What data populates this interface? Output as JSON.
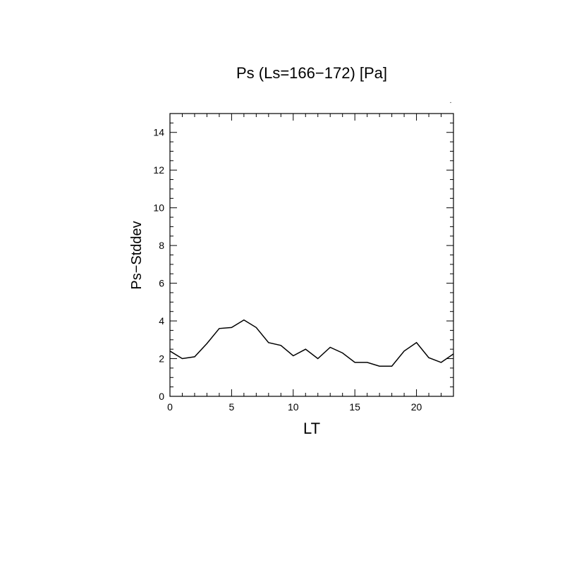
{
  "chart_data": {
    "type": "line",
    "title": "Ps (Ls=166−172) [Pa]",
    "xlabel": "LT",
    "ylabel": "Ps−Stddev",
    "xlim": [
      0,
      23
    ],
    "ylim": [
      0,
      15
    ],
    "x_ticks": [
      0,
      5,
      10,
      15,
      20
    ],
    "y_ticks": [
      0,
      2,
      4,
      6,
      8,
      10,
      12,
      14
    ],
    "grid": false,
    "series": [
      {
        "x": [
          0,
          1,
          2,
          3,
          4,
          5,
          6,
          7,
          8,
          9,
          10,
          11,
          12,
          13,
          14,
          15,
          16,
          17,
          18,
          19,
          20,
          21,
          22,
          23
        ],
        "values": [
          2.4,
          2.0,
          2.1,
          2.8,
          3.6,
          3.65,
          4.05,
          3.65,
          2.85,
          2.7,
          2.15,
          2.5,
          2.0,
          2.6,
          2.3,
          1.8,
          1.8,
          1.6,
          1.6,
          2.4,
          2.85,
          2.05,
          1.8,
          2.25
        ]
      }
    ],
    "color": "#000000"
  }
}
